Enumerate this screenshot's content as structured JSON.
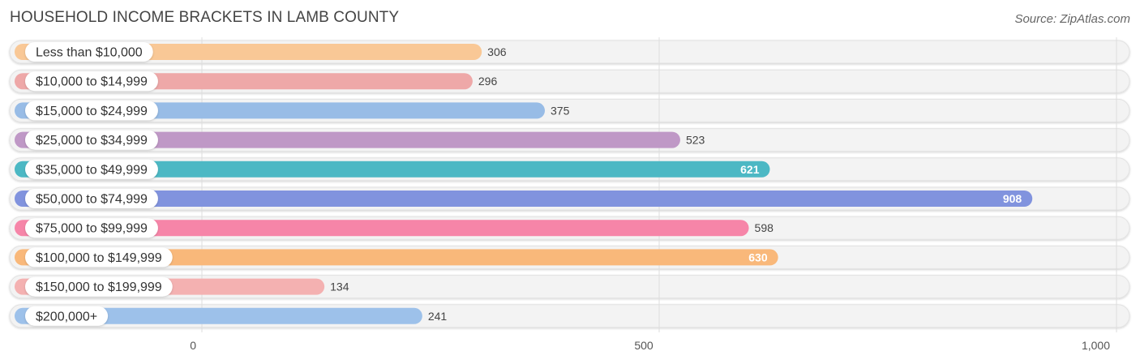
{
  "header": {
    "title": "HOUSEHOLD INCOME BRACKETS IN LAMB COUNTY",
    "source": "Source: ZipAtlas.com"
  },
  "chart_data": {
    "type": "bar",
    "orientation": "horizontal",
    "title": "HOUSEHOLD INCOME BRACKETS IN LAMB COUNTY",
    "categories": [
      "Less than $10,000",
      "$10,000 to $14,999",
      "$15,000 to $24,999",
      "$25,000 to $34,999",
      "$35,000 to $49,999",
      "$50,000 to $74,999",
      "$75,000 to $99,999",
      "$100,000 to $149,999",
      "$150,000 to $199,999",
      "$200,000+"
    ],
    "values": [
      306,
      296,
      375,
      523,
      621,
      908,
      598,
      630,
      134,
      241
    ],
    "value_labels": [
      "306",
      "296",
      "375",
      "523",
      "621",
      "908",
      "598",
      "630",
      "134",
      "241"
    ],
    "colors": [
      "#f9c896",
      "#eea8a8",
      "#98bce6",
      "#bf98c6",
      "#4cb8c4",
      "#8193de",
      "#f685a8",
      "#f9b87a",
      "#f4b1b1",
      "#9dc1ea"
    ],
    "xlim": [
      0,
      1000
    ],
    "xticks": [
      0,
      500,
      1000
    ],
    "xtick_labels": [
      "0",
      "500",
      "1,000"
    ],
    "grid": true
  }
}
